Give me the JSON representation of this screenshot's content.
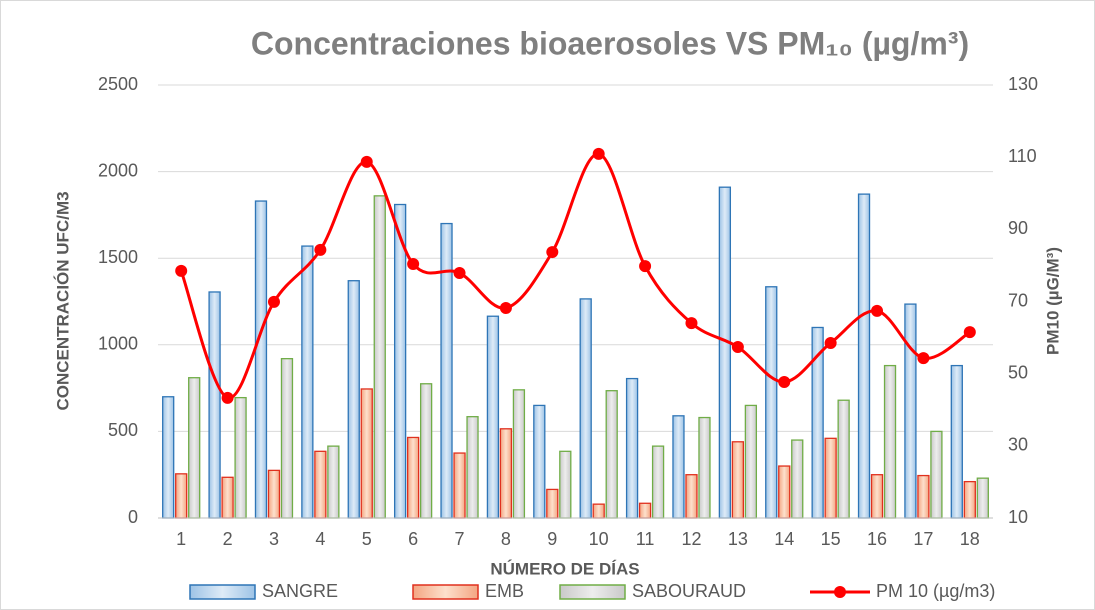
{
  "chart_data": {
    "type": "bar",
    "title": "Concentraciones bioaerosoles VS PM₁₀ (µg/m³)",
    "x_label": "NÚMERO DE DÍAS",
    "y_label": "CONCENTRACIÓN UFC/M3",
    "y2_label": "PM10 (µG/M³)",
    "categories": [
      "1",
      "2",
      "3",
      "4",
      "5",
      "6",
      "7",
      "8",
      "9",
      "10",
      "11",
      "12",
      "13",
      "14",
      "15",
      "16",
      "17",
      "18"
    ],
    "series": [
      {
        "name": "SANGRE",
        "type": "bar",
        "color": "#2e75b6",
        "values": [
          700,
          1305,
          1830,
          1570,
          1370,
          1810,
          1700,
          1165,
          650,
          1265,
          805,
          590,
          1910,
          1335,
          1100,
          1870,
          1235,
          880
        ]
      },
      {
        "name": "EMB",
        "type": "bar",
        "color": "#e0301e",
        "values": [
          255,
          235,
          275,
          385,
          745,
          465,
          375,
          515,
          165,
          80,
          85,
          250,
          440,
          300,
          460,
          250,
          245,
          210
        ]
      },
      {
        "name": "SABOURAUD",
        "type": "bar",
        "color": "#70ad47",
        "values": [
          810,
          695,
          920,
          415,
          1860,
          775,
          585,
          740,
          385,
          735,
          415,
          580,
          650,
          450,
          680,
          880,
          500,
          230
        ]
      },
      {
        "name": "PM 10 (µg/m3)",
        "type": "line",
        "axis": "y2",
        "color": "#ff0000",
        "values": [
          78.5,
          43.3,
          69.9,
          84.3,
          108.7,
          80.4,
          77.9,
          68.2,
          83.7,
          110.9,
          79.8,
          64,
          57.4,
          47.7,
          58.5,
          67.4,
          54.3,
          61.5
        ]
      }
    ],
    "ylim": [
      0,
      2500
    ],
    "yticks": [
      0,
      500,
      1000,
      1500,
      2000,
      2500
    ],
    "y2lim": [
      10,
      130
    ],
    "y2ticks": [
      10,
      30,
      50,
      70,
      90,
      110,
      130
    ],
    "grid": true,
    "legend": "bottom"
  }
}
